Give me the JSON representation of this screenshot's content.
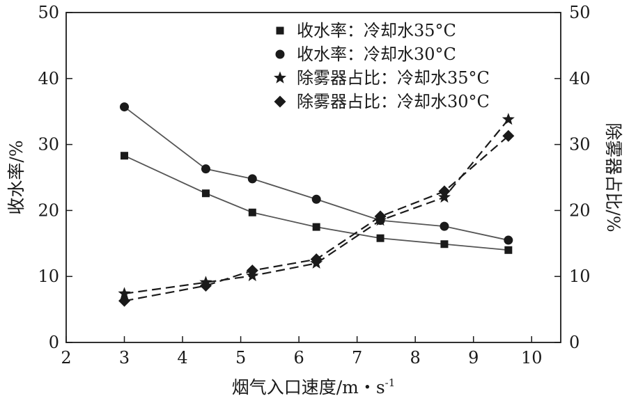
{
  "chart_data": {
    "type": "line",
    "xlabel": "烟气入口速度/m・s",
    "xlabel_superscript": "-1",
    "ylabel": "收水率/%",
    "y2label": "除雾器占比/%",
    "xlim": [
      2,
      10.5
    ],
    "ylim": [
      0,
      50
    ],
    "y2lim": [
      0,
      50
    ],
    "x_ticks": [
      "2",
      "3",
      "4",
      "5",
      "6",
      "7",
      "8",
      "9",
      "10"
    ],
    "y_ticks": [
      "0",
      "10",
      "20",
      "30",
      "40",
      "50"
    ],
    "y2_ticks": [
      "0",
      "10",
      "20",
      "30",
      "40",
      "50"
    ],
    "grid": false,
    "legend_position": "top-right",
    "series": [
      {
        "name": "收水率：冷却水35°C",
        "axis": "left",
        "marker": "square",
        "line_style": "solid",
        "x": [
          3,
          4.4,
          5.2,
          6.3,
          7.4,
          8.5,
          9.6
        ],
        "y": [
          28.3,
          22.6,
          19.7,
          17.5,
          15.8,
          14.9,
          14.0
        ]
      },
      {
        "name": "收水率：冷却水30°C",
        "axis": "left",
        "marker": "circle",
        "line_style": "solid",
        "x": [
          3,
          4.4,
          5.2,
          6.3,
          7.4,
          8.5,
          9.6
        ],
        "y": [
          35.7,
          26.3,
          24.8,
          21.7,
          18.5,
          17.6,
          15.5
        ]
      },
      {
        "name": "除雾器占比：冷却水35°C",
        "axis": "right",
        "marker": "star",
        "line_style": "dashed",
        "x": [
          3,
          4.4,
          5.2,
          6.3,
          7.4,
          8.5,
          9.6
        ],
        "y": [
          7.4,
          9.1,
          10.1,
          12.0,
          18.5,
          22.0,
          33.8
        ]
      },
      {
        "name": "除雾器占比：冷却水30°C",
        "axis": "right",
        "marker": "diamond",
        "line_style": "dashed",
        "x": [
          3,
          4.4,
          5.2,
          6.3,
          7.4,
          8.5,
          9.6
        ],
        "y": [
          6.3,
          8.6,
          10.9,
          12.6,
          19.1,
          22.9,
          31.3
        ]
      }
    ]
  },
  "colors": {
    "axis": "#1a1a1a",
    "solid_line": "#555555",
    "dashed_line": "#1a1a1a",
    "marker": "#1a1a1a"
  }
}
